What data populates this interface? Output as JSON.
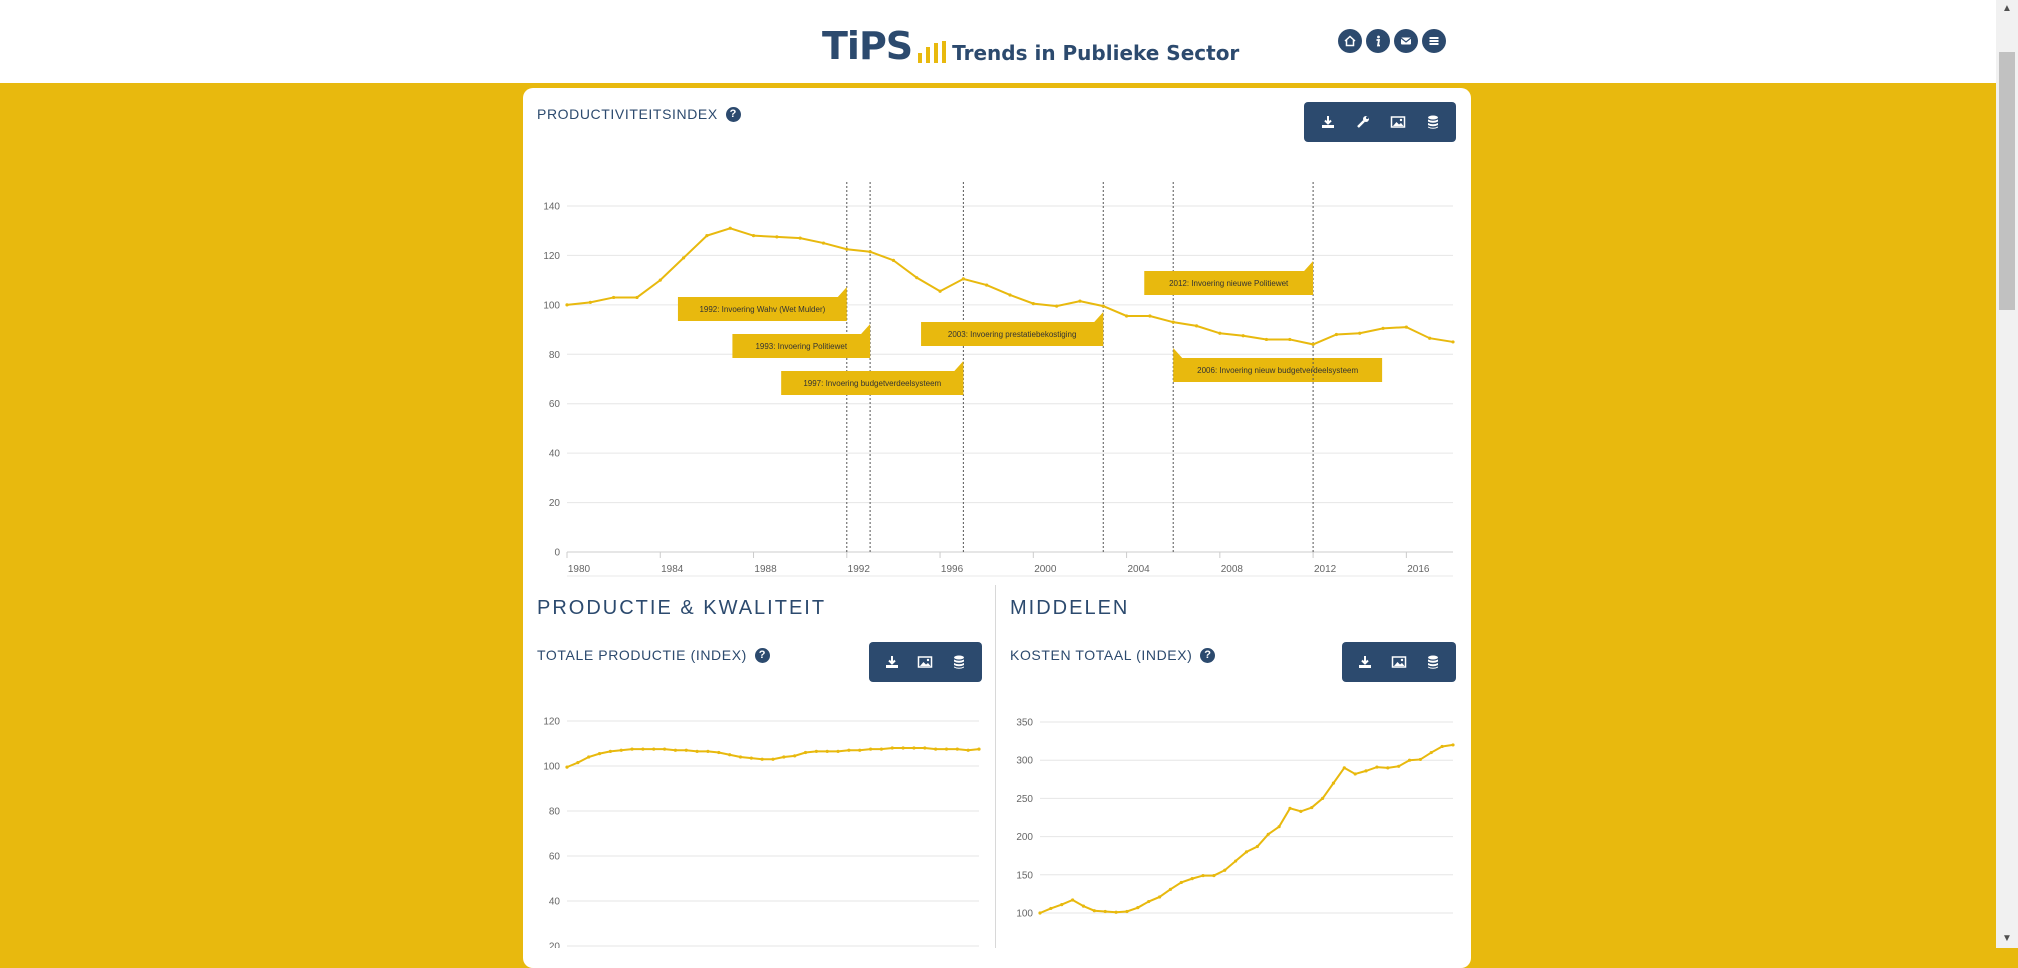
{
  "header": {
    "logo_main": "TiPS",
    "logo_sub": "Trends in Publieke Sector",
    "nav_icons": [
      "home-icon",
      "info-icon",
      "mail-icon",
      "menu-icon"
    ]
  },
  "colors": {
    "accent": "#e8b90e",
    "brand": "#2c4a6e",
    "line": "#e8b90e"
  },
  "main_chart": {
    "title": "PRODUCTIVITEITSINDEX",
    "help": "?",
    "toolbar": [
      "download-icon",
      "wrench-icon",
      "image-icon",
      "database-icon"
    ]
  },
  "sections": {
    "productie": "PRODUCTIE & KWALITEIT",
    "middelen": "MIDDELEN"
  },
  "chart_totale": {
    "title": "TOTALE PRODUCTIE (INDEX)",
    "help": "?",
    "toolbar": [
      "download-icon",
      "image-icon",
      "database-icon"
    ]
  },
  "chart_kosten": {
    "title": "KOSTEN TOTAAL (INDEX)",
    "help": "?",
    "toolbar": [
      "download-icon",
      "image-icon",
      "database-icon"
    ]
  },
  "chart_data": [
    {
      "type": "line",
      "title": "PRODUCTIVITEITSINDEX",
      "x": [
        1980,
        1981,
        1982,
        1983,
        1984,
        1985,
        1986,
        1987,
        1988,
        1989,
        1990,
        1991,
        1992,
        1993,
        1994,
        1995,
        1996,
        1997,
        1998,
        1999,
        2000,
        2001,
        2002,
        2003,
        2004,
        2005,
        2006,
        2007,
        2008,
        2009,
        2010,
        2011,
        2012,
        2013,
        2014,
        2015,
        2016,
        2017,
        2018
      ],
      "values": [
        100,
        101,
        103,
        103,
        110,
        119,
        128,
        131,
        128,
        127.5,
        127,
        125,
        122.5,
        121.5,
        118,
        111,
        105.5,
        110.5,
        108,
        104,
        100.5,
        99.5,
        101.5,
        99.5,
        95.5,
        95.5,
        93,
        91.5,
        88.5,
        87.5,
        86,
        86,
        84,
        88,
        88.5,
        90.5,
        91,
        86.5,
        85
      ],
      "xticks": [
        "1980",
        "1984",
        "1988",
        "1992",
        "1996",
        "2000",
        "2004",
        "2008",
        "2012",
        "2016"
      ],
      "yticks": [
        "0",
        "20",
        "40",
        "60",
        "80",
        "100",
        "120",
        "140"
      ],
      "ylim": [
        0,
        140
      ],
      "xlim": [
        1980,
        2018
      ],
      "annotations": [
        {
          "year": 1992,
          "label": "1992: Invoering Wahv (Wet Mulder)"
        },
        {
          "year": 1993,
          "label": "1993: Invoering Politiewet"
        },
        {
          "year": 1997,
          "label": "1997: Invoering budgetverdeelsysteem"
        },
        {
          "year": 2003,
          "label": "2003: Invoering prestatiebekostiging"
        },
        {
          "year": 2006,
          "label": "2006: Invoering nieuw budgetverdeelsysteem"
        },
        {
          "year": 2012,
          "label": "2012: Invoering nieuwe Politiewet"
        }
      ]
    },
    {
      "type": "line",
      "title": "TOTALE PRODUCTIE (INDEX)",
      "x": [
        1980,
        1981,
        1982,
        1983,
        1984,
        1985,
        1986,
        1987,
        1988,
        1989,
        1990,
        1991,
        1992,
        1993,
        1994,
        1995,
        1996,
        1997,
        1998,
        1999,
        2000,
        2001,
        2002,
        2003,
        2004,
        2005,
        2006,
        2007,
        2008,
        2009,
        2010,
        2011,
        2012,
        2013,
        2014,
        2015,
        2016,
        2017,
        2018
      ],
      "values": [
        99.5,
        101.5,
        104,
        105.5,
        106.5,
        107,
        107.5,
        107.5,
        107.5,
        107.5,
        107,
        107,
        106.5,
        106.5,
        106,
        105,
        104,
        103.5,
        103,
        103,
        104,
        104.5,
        106,
        106.5,
        106.5,
        106.5,
        107,
        107,
        107.5,
        107.5,
        108,
        108,
        108,
        108,
        107.5,
        107.5,
        107.5,
        107,
        107.5
      ],
      "yticks": [
        "20",
        "40",
        "60",
        "80",
        "100",
        "120"
      ],
      "ylim": [
        0,
        120
      ]
    },
    {
      "type": "line",
      "title": "KOSTEN TOTAAL (INDEX)",
      "x": [
        1980,
        1981,
        1982,
        1983,
        1984,
        1985,
        1986,
        1987,
        1988,
        1989,
        1990,
        1991,
        1992,
        1993,
        1994,
        1995,
        1996,
        1997,
        1998,
        1999,
        2000,
        2001,
        2002,
        2003,
        2004,
        2005,
        2006,
        2007,
        2008,
        2009,
        2010,
        2011,
        2012,
        2013,
        2014,
        2015,
        2016,
        2017,
        2018
      ],
      "values": [
        100,
        106,
        111,
        117,
        109,
        103,
        102,
        101,
        102,
        107,
        115,
        121,
        131,
        140,
        145,
        149,
        149,
        156,
        168,
        180,
        187,
        203,
        213,
        237,
        233,
        238,
        250,
        270,
        290,
        282,
        286,
        291,
        290,
        292,
        300,
        301,
        310,
        318,
        320
      ],
      "yticks": [
        "100",
        "150",
        "200",
        "250",
        "300",
        "350"
      ],
      "ylim": [
        100,
        350
      ]
    }
  ]
}
